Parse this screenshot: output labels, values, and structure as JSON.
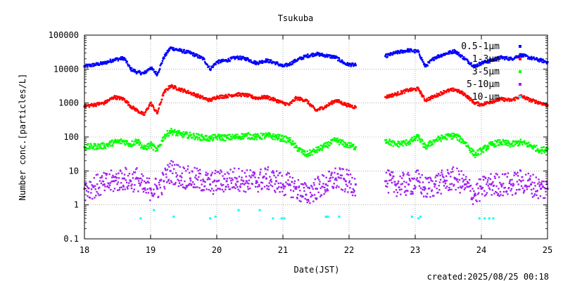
{
  "chart_data": {
    "type": "scatter",
    "title": "Tsukuba",
    "xlabel": "Date(JST)",
    "ylabel": "Number conc.[particles/L]",
    "footer": "created:2025/08/25 00:18",
    "xlim": [
      18,
      25
    ],
    "ylim": [
      0.1,
      100000
    ],
    "yscale": "log",
    "grid": true,
    "legend_position": "top-right",
    "x_ticks": [
      "18",
      "19",
      "20",
      "21",
      "22",
      "23",
      "24",
      "25"
    ],
    "y_ticks": [
      "0.1",
      "1",
      "10",
      "100",
      "1000",
      "10000",
      "100000"
    ],
    "data_gap": [
      22.15,
      22.55
    ],
    "series": [
      {
        "name": "0.5-1μm",
        "color": "#0000ff",
        "x": [
          18.0,
          18.3,
          18.45,
          18.6,
          18.7,
          18.8,
          18.9,
          19.0,
          19.1,
          19.2,
          19.3,
          19.45,
          19.6,
          19.8,
          19.9,
          20.0,
          20.15,
          20.3,
          20.45,
          20.6,
          20.75,
          20.9,
          21.0,
          21.1,
          21.2,
          21.35,
          21.5,
          21.65,
          21.8,
          21.95,
          22.1,
          22.55,
          22.7,
          22.9,
          23.05,
          23.15,
          23.3,
          23.45,
          23.6,
          23.75,
          23.9,
          24.0,
          24.15,
          24.3,
          24.45,
          24.6,
          24.75,
          24.9,
          25.0
        ],
        "values": [
          12000,
          15000,
          19000,
          21000,
          10000,
          8000,
          7500,
          11000,
          7000,
          22000,
          42000,
          35000,
          30000,
          20000,
          10000,
          16000,
          18000,
          22000,
          20000,
          15000,
          18000,
          15000,
          12000,
          14000,
          18000,
          24000,
          28000,
          25000,
          22000,
          14000,
          13000,
          24000,
          30000,
          36000,
          32000,
          12000,
          22000,
          28000,
          34000,
          20000,
          12000,
          15000,
          18000,
          22000,
          20000,
          26000,
          21000,
          18000,
          16000
        ]
      },
      {
        "name": "1-3μm",
        "color": "#ff0000",
        "x": [
          18.0,
          18.3,
          18.45,
          18.6,
          18.7,
          18.8,
          18.9,
          19.0,
          19.1,
          19.2,
          19.3,
          19.45,
          19.6,
          19.8,
          19.9,
          20.0,
          20.15,
          20.3,
          20.45,
          20.6,
          20.75,
          20.9,
          21.0,
          21.1,
          21.2,
          21.35,
          21.5,
          21.65,
          21.8,
          21.95,
          22.1,
          22.55,
          22.7,
          22.9,
          23.05,
          23.15,
          23.3,
          23.45,
          23.6,
          23.75,
          23.9,
          24.0,
          24.15,
          24.3,
          24.45,
          24.6,
          24.75,
          24.9,
          25.0
        ],
        "values": [
          800,
          1000,
          1500,
          1300,
          800,
          600,
          450,
          1000,
          500,
          2000,
          3200,
          2500,
          2000,
          1400,
          1200,
          1500,
          1600,
          1800,
          1700,
          1400,
          1500,
          1200,
          1000,
          900,
          1400,
          1200,
          600,
          800,
          1200,
          900,
          750,
          1500,
          1800,
          2400,
          2600,
          1200,
          1600,
          2200,
          2500,
          1800,
          1000,
          900,
          1100,
          1300,
          1200,
          1600,
          1200,
          1000,
          850
        ]
      },
      {
        "name": "3-5μm",
        "color": "#00ff00",
        "x": [
          18.0,
          18.3,
          18.45,
          18.6,
          18.7,
          18.8,
          18.9,
          19.0,
          19.1,
          19.2,
          19.3,
          19.45,
          19.6,
          19.8,
          19.9,
          20.0,
          20.15,
          20.3,
          20.45,
          20.6,
          20.75,
          20.9,
          21.0,
          21.1,
          21.2,
          21.35,
          21.5,
          21.65,
          21.8,
          21.95,
          22.1,
          22.55,
          22.7,
          22.9,
          23.05,
          23.15,
          23.3,
          23.45,
          23.6,
          23.75,
          23.9,
          24.0,
          24.15,
          24.3,
          24.45,
          24.6,
          24.75,
          24.9,
          25.0
        ],
        "values": [
          50,
          55,
          70,
          75,
          60,
          80,
          45,
          60,
          40,
          100,
          150,
          120,
          110,
          95,
          90,
          100,
          95,
          100,
          110,
          100,
          110,
          100,
          90,
          80,
          50,
          30,
          40,
          55,
          80,
          60,
          50,
          80,
          60,
          70,
          100,
          50,
          80,
          100,
          110,
          70,
          30,
          40,
          60,
          70,
          60,
          70,
          55,
          40,
          45
        ]
      },
      {
        "name": "5-10μm",
        "color": "#a020f0",
        "x": [
          18.0,
          18.3,
          18.45,
          18.6,
          18.7,
          18.8,
          18.9,
          19.0,
          19.1,
          19.2,
          19.3,
          19.45,
          19.6,
          19.8,
          19.9,
          20.0,
          20.15,
          20.3,
          20.45,
          20.6,
          20.75,
          20.9,
          21.0,
          21.1,
          21.2,
          21.35,
          21.5,
          21.65,
          21.8,
          21.95,
          22.1,
          22.55,
          22.7,
          22.9,
          23.05,
          23.15,
          23.3,
          23.45,
          23.6,
          23.75,
          23.9,
          24.0,
          24.15,
          24.3,
          24.45,
          24.6,
          24.75,
          24.9,
          25.0
        ],
        "values": [
          3,
          4,
          5,
          6,
          5,
          6,
          3,
          3,
          3,
          5,
          10,
          7,
          6,
          5,
          4,
          5,
          5,
          6,
          5,
          5,
          6,
          5,
          4,
          4,
          3,
          2,
          3,
          4,
          6,
          5,
          4,
          5,
          4,
          4,
          5,
          3,
          4,
          5,
          6,
          4,
          2,
          3,
          4,
          4,
          4,
          5,
          4,
          3,
          3
        ]
      },
      {
        "name": "10-μm",
        "color": "#00ffff",
        "x": [
          18.85,
          19.05,
          19.35,
          19.9,
          19.98,
          20.33,
          20.65,
          20.85,
          20.98,
          21.02,
          21.65,
          21.68,
          21.85,
          22.95,
          23.05,
          23.08,
          23.97,
          24.05,
          24.12,
          24.18
        ],
        "values": [
          0.4,
          0.7,
          0.45,
          0.4,
          0.45,
          0.7,
          0.7,
          0.4,
          0.4,
          0.4,
          0.45,
          0.45,
          0.45,
          0.45,
          0.4,
          0.45,
          0.4,
          0.4,
          0.4,
          0.4
        ]
      }
    ]
  }
}
